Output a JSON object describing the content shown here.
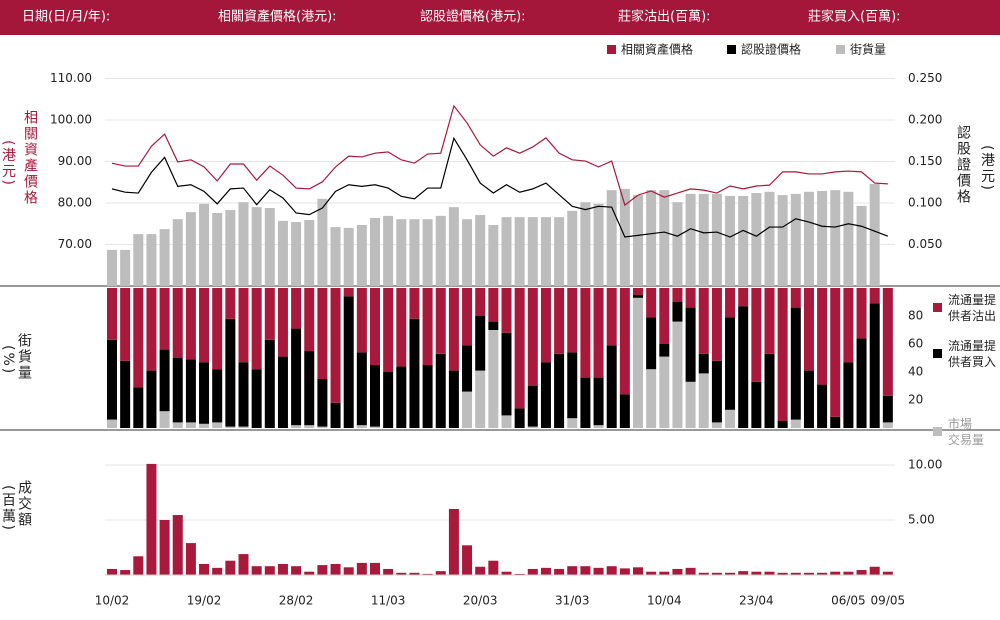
{
  "header": {
    "labels": [
      "日期(日/月/年):",
      "相關資產價格(港元):",
      "認股證價格(港元):",
      "莊家沽出(百萬):",
      "莊家買入(百萬):"
    ]
  },
  "chart_data": [
    {
      "type": "combo",
      "ylabel": "相關資產價格",
      "ylabel_unit": "(港元)",
      "y2label": "認股證價格",
      "y2label_unit": "(港元)",
      "ylim": [
        60,
        115
      ],
      "yticks": [
        {
          "value": 70,
          "label": "70.00"
        },
        {
          "value": 80,
          "label": "80.00"
        },
        {
          "value": 90,
          "label": "90.00"
        },
        {
          "value": 100,
          "label": "100.00"
        },
        {
          "value": 110,
          "label": "110.00"
        }
      ],
      "y2lim": [
        0,
        0.275
      ],
      "y2ticks": [
        {
          "value": 0.05,
          "label": "0.050"
        },
        {
          "value": 0.1,
          "label": "0.100"
        },
        {
          "value": 0.15,
          "label": "0.150"
        },
        {
          "value": 0.2,
          "label": "0.200"
        },
        {
          "value": 0.25,
          "label": "0.250"
        }
      ],
      "grid": true,
      "series": [
        {
          "name": "相關資產價格",
          "type": "line",
          "axis": "y",
          "color": "#a8193b",
          "values": [
            89.6,
            88.9,
            88.9,
            93.7,
            96.6,
            89.9,
            90.4,
            88.7,
            85.3,
            89.4,
            89.4,
            85.5,
            88.9,
            86.7,
            83.6,
            83.4,
            85.1,
            88.7,
            91.3,
            91.1,
            92.0,
            92.3,
            90.4,
            89.6,
            91.8,
            92.0,
            103.4,
            99.3,
            94.0,
            91.3,
            93.3,
            92.0,
            93.5,
            95.7,
            92.0,
            90.4,
            90.1,
            88.7,
            90.1,
            79.5,
            81.9,
            82.9,
            81.4,
            82.4,
            83.4,
            83.1,
            82.4,
            84.1,
            83.4,
            84.1,
            84.3,
            87.5,
            87.5,
            87.0,
            87.0,
            87.5,
            87.7,
            87.5,
            84.8,
            84.6
          ]
        },
        {
          "name": "認股證價格",
          "type": "line",
          "axis": "y2",
          "color": "#000000",
          "values": [
            0.117,
            0.113,
            0.112,
            0.137,
            0.155,
            0.12,
            0.122,
            0.114,
            0.099,
            0.117,
            0.118,
            0.098,
            0.116,
            0.106,
            0.088,
            0.086,
            0.094,
            0.114,
            0.122,
            0.12,
            0.122,
            0.118,
            0.108,
            0.105,
            0.118,
            0.118,
            0.178,
            0.152,
            0.124,
            0.112,
            0.122,
            0.113,
            0.117,
            0.124,
            0.11,
            0.096,
            0.092,
            0.096,
            0.095,
            0.059,
            0.061,
            0.063,
            0.065,
            0.06,
            0.069,
            0.064,
            0.065,
            0.059,
            0.067,
            0.06,
            0.071,
            0.071,
            0.081,
            0.077,
            0.072,
            0.071,
            0.075,
            0.072,
            0.066,
            0.06
          ]
        },
        {
          "name": "街貨量",
          "type": "bar",
          "axis": "y",
          "color": "#bdbdbd",
          "values": [
            68.7,
            68.7,
            72.5,
            72.5,
            73.7,
            76.1,
            77.8,
            79.8,
            77.6,
            78.3,
            80.2,
            79.0,
            78.8,
            75.7,
            75.4,
            75.9,
            81.0,
            74.2,
            74.0,
            74.7,
            76.4,
            76.9,
            76.1,
            76.1,
            76.1,
            76.9,
            79.0,
            76.1,
            77.1,
            74.7,
            76.6,
            76.6,
            76.6,
            76.6,
            76.6,
            78.1,
            80.2,
            79.8,
            83.1,
            83.4,
            81.9,
            83.1,
            83.1,
            80.2,
            82.2,
            82.2,
            82.2,
            81.7,
            81.7,
            82.4,
            82.7,
            81.9,
            82.2,
            82.7,
            82.9,
            83.1,
            82.7,
            79.3,
            84.6,
            null
          ]
        }
      ]
    },
    {
      "type": "stacked_bar",
      "ylabel": "街貨量",
      "ylabel_unit": "(%)",
      "ylim": [
        0,
        100
      ],
      "yticks": [
        20,
        40,
        60,
        80
      ],
      "grid": false,
      "series": [
        {
          "name": "流通量提供者沽出",
          "color": "#a8193b",
          "values": [
            37,
            52,
            71,
            59,
            44,
            50,
            51,
            53,
            58,
            22,
            53,
            58,
            37,
            49,
            29,
            45,
            65,
            82,
            6,
            46,
            55,
            60,
            56,
            22,
            55,
            47,
            59,
            41,
            20,
            24,
            32,
            86,
            70,
            53,
            47,
            46,
            64,
            64,
            41,
            76,
            5,
            21,
            40,
            10,
            14,
            47,
            52,
            21,
            13,
            67,
            47,
            95,
            14,
            59,
            69,
            92,
            53,
            36,
            11,
            77
          ]
        },
        {
          "name": "流通量提供者買入",
          "color": "#000000",
          "values": [
            57,
            48,
            29,
            41,
            44,
            46,
            45,
            44,
            38,
            77,
            46,
            42,
            63,
            51,
            69,
            53,
            34,
            18,
            94,
            52,
            44,
            40,
            44,
            78,
            45,
            53,
            41,
            33,
            39,
            6,
            59,
            14,
            29,
            47,
            53,
            47,
            36,
            34,
            59,
            24,
            2,
            37,
            9,
            14,
            53,
            14,
            44,
            66,
            87,
            33,
            53,
            5,
            80,
            41,
            31,
            8,
            47,
            64,
            89,
            19
          ]
        },
        {
          "name": "市場交易量",
          "color": "#bdbdbd",
          "values": [
            6,
            0,
            0,
            0,
            12,
            4,
            4,
            3,
            4,
            1,
            1,
            0,
            0,
            0,
            2,
            2,
            1,
            0,
            0,
            2,
            1,
            0,
            0,
            0,
            0,
            0,
            0,
            26,
            41,
            70,
            9,
            0,
            1,
            0,
            0,
            7,
            0,
            2,
            0,
            0,
            93,
            42,
            51,
            76,
            33,
            39,
            4,
            13,
            0,
            0,
            0,
            0,
            6,
            0,
            0,
            0,
            0,
            0,
            0,
            4
          ]
        }
      ]
    },
    {
      "type": "bar",
      "ylabel": "成交額",
      "ylabel_unit": "(百萬)",
      "ylim": [
        0,
        11
      ],
      "yticks": [
        {
          "value": 5,
          "label": "5.00"
        },
        {
          "value": 10,
          "label": "10.00"
        }
      ],
      "grid": true,
      "color": "#a8193b",
      "categories": [
        "10/02",
        null,
        null,
        null,
        null,
        null,
        null,
        "19/02",
        null,
        null,
        null,
        null,
        null,
        null,
        "28/02",
        null,
        null,
        null,
        null,
        null,
        null,
        "11/03",
        null,
        null,
        null,
        null,
        null,
        null,
        "20/03",
        null,
        null,
        null,
        null,
        null,
        null,
        "31/03",
        null,
        null,
        null,
        null,
        null,
        null,
        "10/04",
        null,
        null,
        null,
        null,
        null,
        null,
        "23/04",
        null,
        null,
        null,
        null,
        null,
        null,
        "06/05",
        null,
        null,
        "09/05"
      ],
      "values": [
        0.55,
        0.45,
        1.7,
        10.1,
        5.0,
        5.45,
        2.9,
        1.0,
        0.65,
        1.3,
        1.9,
        0.8,
        0.8,
        1.0,
        0.8,
        0.3,
        0.9,
        1.0,
        0.7,
        1.1,
        1.1,
        0.55,
        0.2,
        0.2,
        0.1,
        0.35,
        6.0,
        2.7,
        0.75,
        1.3,
        0.3,
        0.1,
        0.55,
        0.65,
        0.55,
        0.8,
        0.8,
        0.65,
        0.8,
        0.6,
        0.7,
        0.3,
        0.3,
        0.55,
        0.65,
        0.2,
        0.2,
        0.2,
        0.35,
        0.3,
        0.3,
        0.2,
        0.2,
        0.2,
        0.2,
        0.3,
        0.3,
        0.45,
        0.75,
        0.3
      ]
    }
  ]
}
